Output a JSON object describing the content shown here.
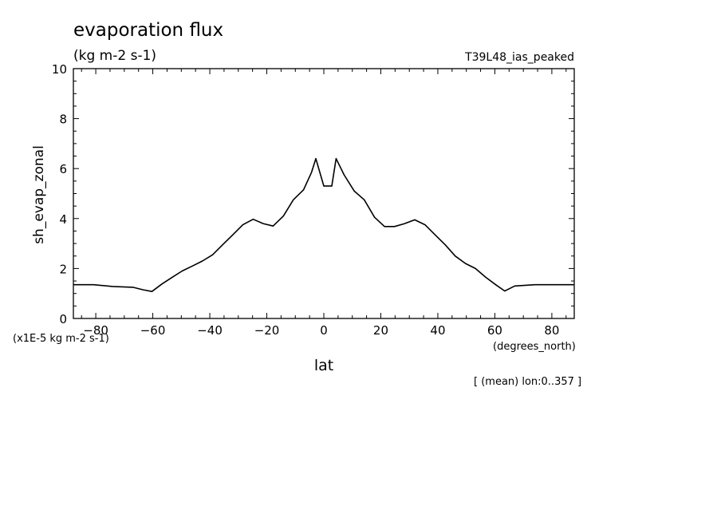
{
  "chart_data": {
    "type": "line",
    "title": "evaporation flux",
    "units": "(kg m-2 s-1)",
    "experiment": "T39L48_ias_peaked",
    "ylabel": "sh_evap_zonal",
    "xlabel": "lat",
    "x_units": "(degrees_north)",
    "y_scale_note": "(x1E-5 kg m-2 s-1)",
    "footnote": "[ (mean) lon:0..357 ]",
    "xlim": [
      -87.86,
      87.86
    ],
    "ylim": [
      0,
      10
    ],
    "x_ticks": [
      -80,
      -60,
      -40,
      -20,
      0,
      20,
      40,
      60,
      80
    ],
    "y_ticks": [
      0,
      2,
      4,
      6,
      8,
      10
    ],
    "x_tick_labels": [
      "−80",
      "−60",
      "−40",
      "−20",
      "0",
      "20",
      "40",
      "60",
      "80"
    ],
    "y_tick_labels": [
      "0",
      "2",
      "4",
      "6",
      "8",
      "10"
    ],
    "grid": false,
    "series": [
      {
        "x": [
          -87.9,
          -80.8,
          -74.1,
          -67.0,
          -63.5,
          -60.3,
          -56.8,
          -53.2,
          -49.7,
          -46.1,
          -42.6,
          -39.0,
          -35.5,
          -31.9,
          -28.4,
          -24.8,
          -21.3,
          -17.8,
          -14.2,
          -10.7,
          -7.1,
          -4.3,
          -2.8,
          0.0,
          2.8,
          4.3,
          7.1,
          10.7,
          14.2,
          17.8,
          21.3,
          24.8,
          28.4,
          31.9,
          35.5,
          39.0,
          42.6,
          46.1,
          49.7,
          53.2,
          56.8,
          60.3,
          63.5,
          67.0,
          74.1,
          80.8,
          87.9
        ],
        "y": [
          1.35,
          1.35,
          1.28,
          1.25,
          1.15,
          1.08,
          1.38,
          1.65,
          1.9,
          2.1,
          2.3,
          2.55,
          2.95,
          3.35,
          3.75,
          3.97,
          3.8,
          3.7,
          4.1,
          4.75,
          5.15,
          5.85,
          6.4,
          5.3,
          5.3,
          6.4,
          5.75,
          5.1,
          4.75,
          4.05,
          3.68,
          3.68,
          3.8,
          3.95,
          3.75,
          3.35,
          2.95,
          2.5,
          2.2,
          2.0,
          1.65,
          1.35,
          1.1,
          1.3,
          1.35,
          1.35,
          1.35
        ]
      }
    ]
  }
}
